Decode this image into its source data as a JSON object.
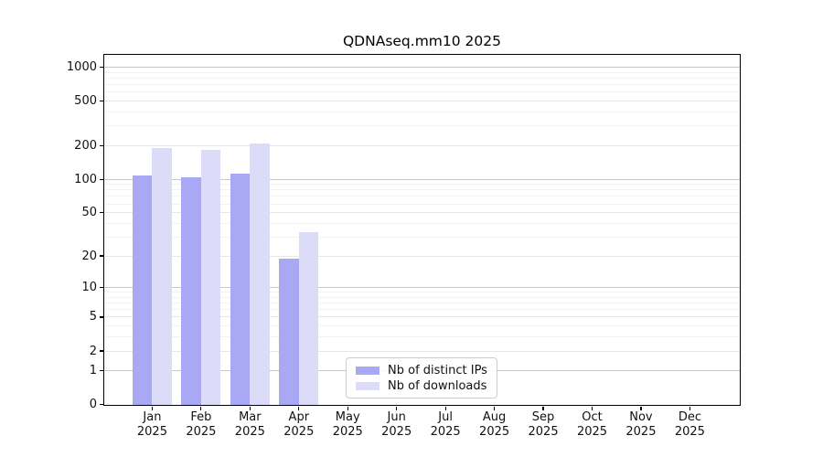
{
  "chart_data": {
    "type": "bar",
    "title": "QDNAseq.mm10 2025",
    "year_label": "2025",
    "categories": [
      "Jan",
      "Feb",
      "Mar",
      "Apr",
      "May",
      "Jun",
      "Jul",
      "Aug",
      "Sep",
      "Oct",
      "Nov",
      "Dec"
    ],
    "series": [
      {
        "name": "Nb of distinct IPs",
        "color": "#a8a8f4",
        "values": [
          108,
          104,
          112,
          19,
          null,
          null,
          null,
          null,
          null,
          null,
          null,
          null
        ]
      },
      {
        "name": "Nb of downloads",
        "color": "#dcdcf8",
        "values": [
          192,
          185,
          208,
          33,
          null,
          null,
          null,
          null,
          null,
          null,
          null,
          null
        ]
      }
    ],
    "y_ticks": [
      0,
      1,
      2,
      5,
      10,
      20,
      50,
      100,
      200,
      500,
      1000
    ],
    "y_scale": "log1p",
    "ylim": [
      0,
      1300
    ],
    "grid": true,
    "legend_position": "lower-center"
  },
  "colors": {
    "major_grid": "#c8c8c8",
    "labeled_minor_grid": "#e6e6e6",
    "faint_minor_grid": "#f2f2f2",
    "axis": "#000000"
  }
}
